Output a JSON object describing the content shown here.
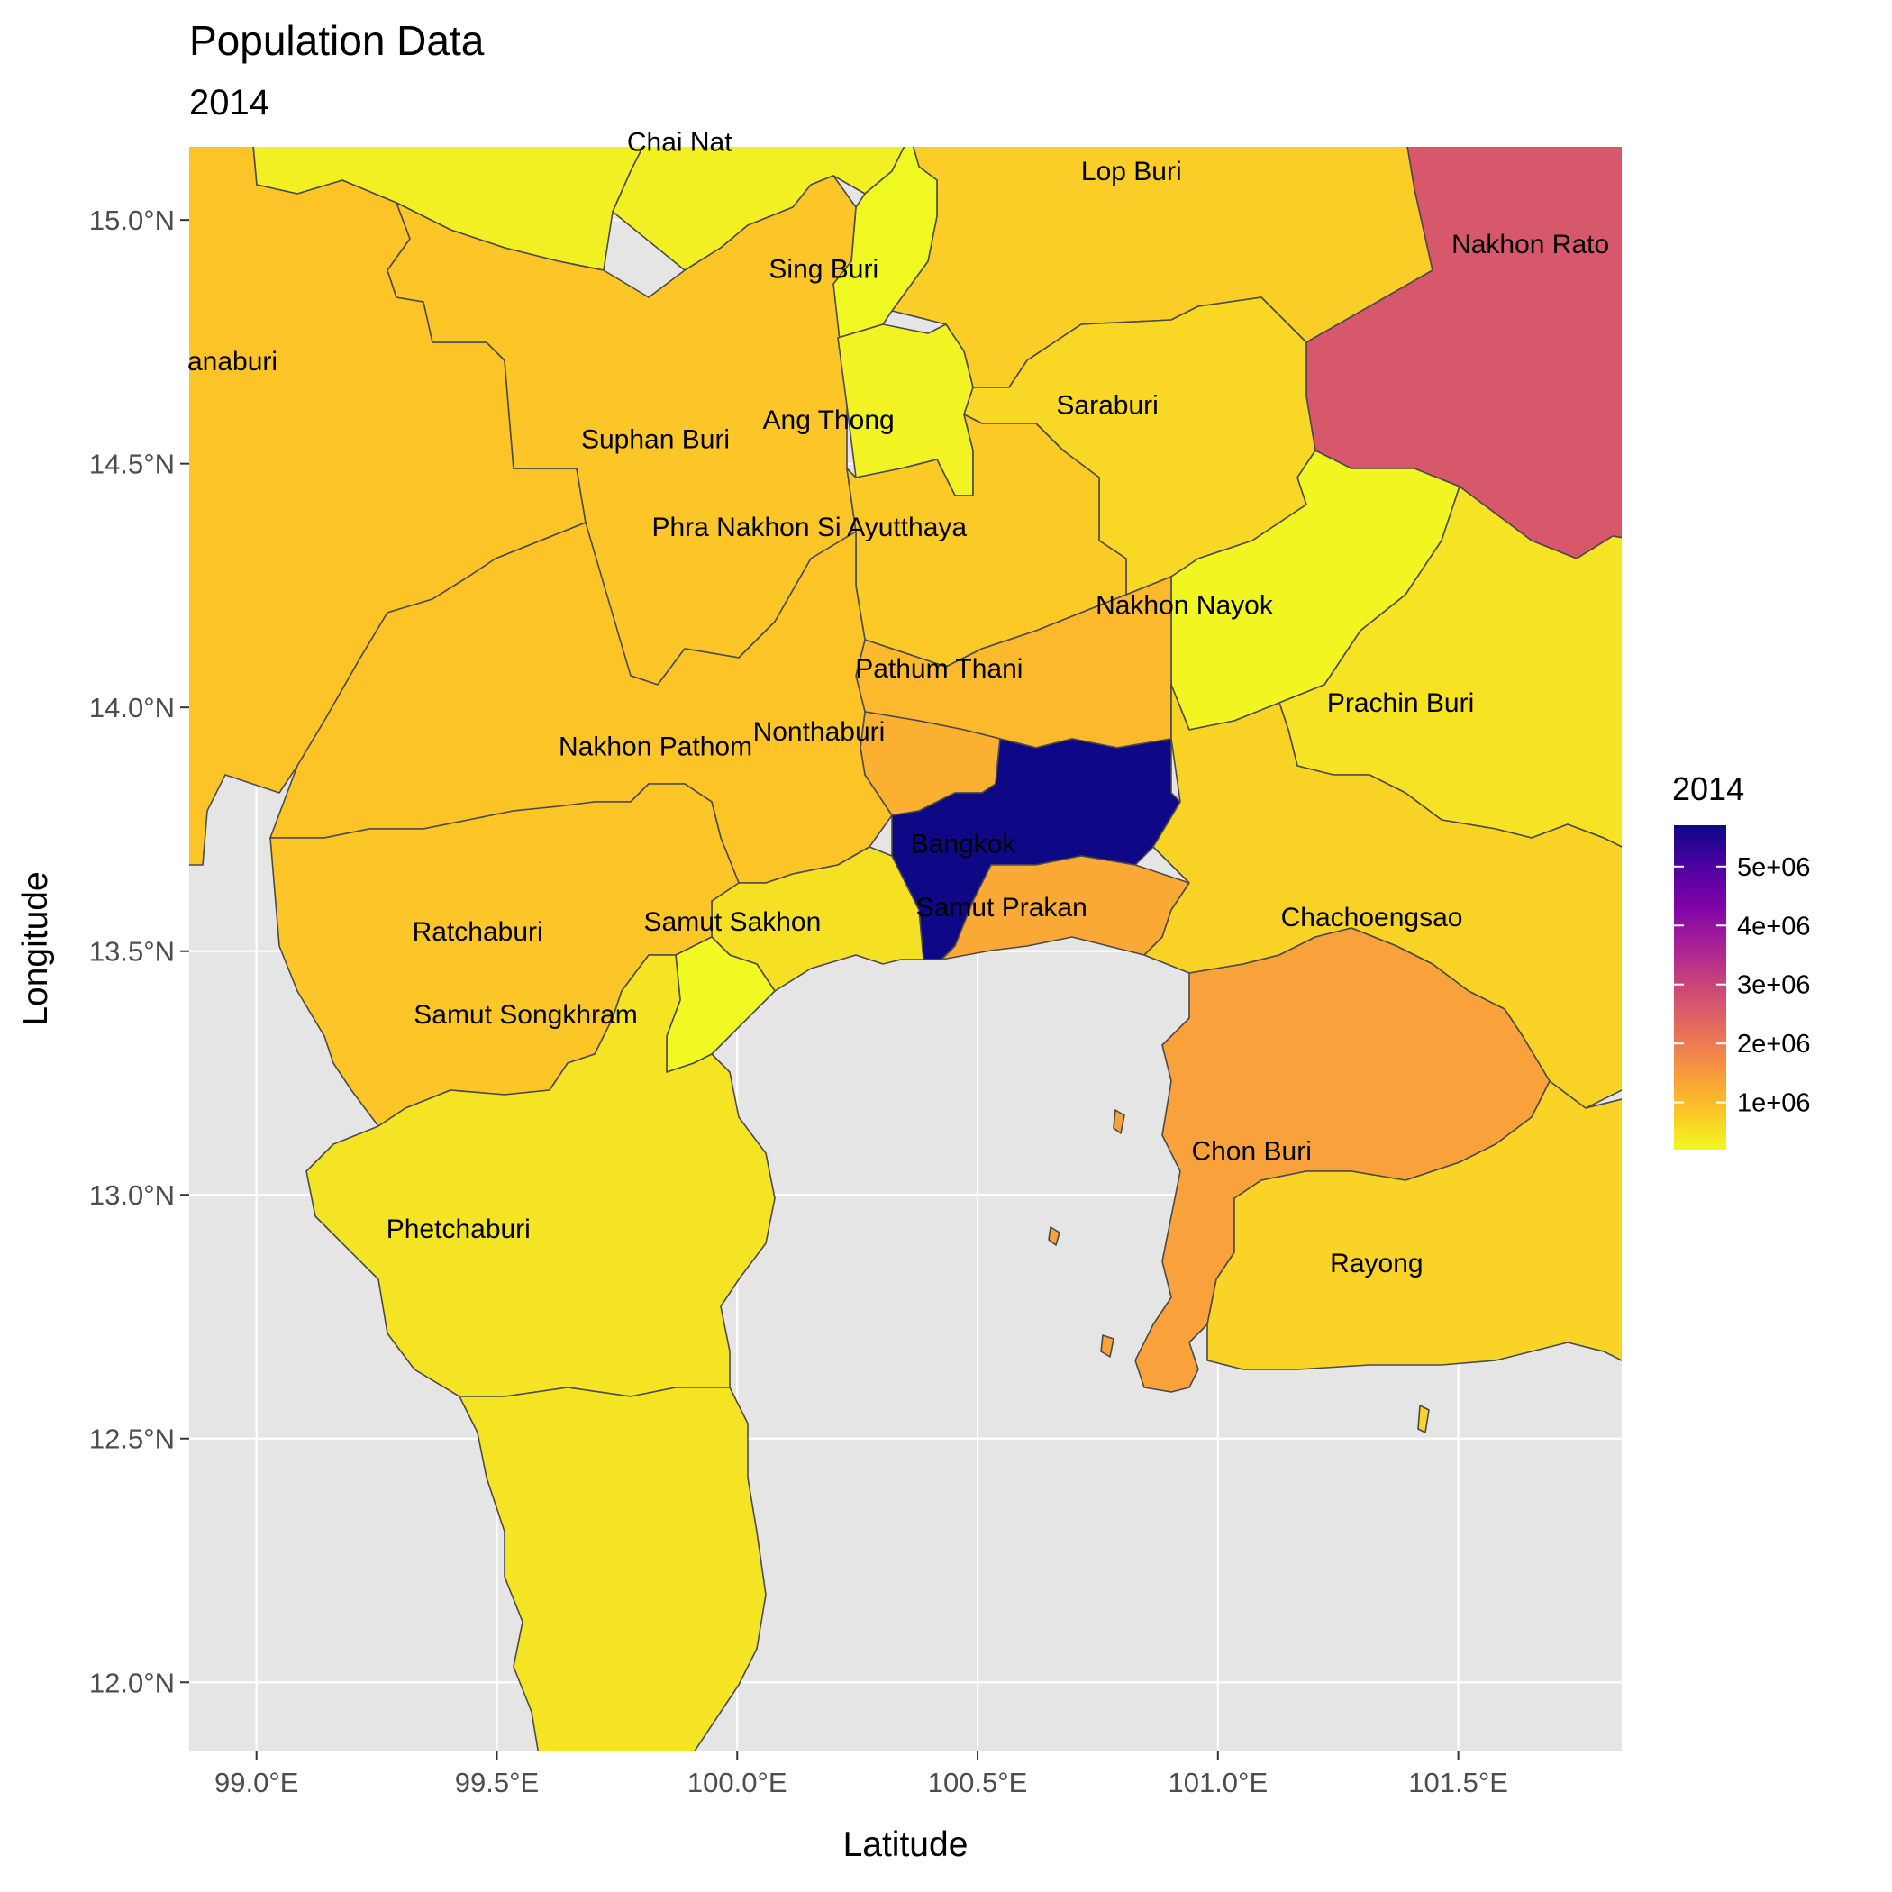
{
  "title": "Population Data",
  "subtitle": "2014",
  "chart_data": {
    "type": "choropleth",
    "title": "Population Data",
    "subtitle": "2014",
    "xlabel": "Latitude",
    "ylabel": "Longitude",
    "xlim": [
      98.86,
      101.84
    ],
    "ylim": [
      11.86,
      15.15
    ],
    "x_ticks": [
      99.0,
      99.5,
      100.0,
      100.5,
      101.0,
      101.5
    ],
    "x_tick_labels": [
      "99.0°E",
      "99.5°E",
      "100.0°E",
      "100.5°E",
      "101.0°E",
      "101.5°E"
    ],
    "y_ticks": [
      12.0,
      12.5,
      13.0,
      13.5,
      14.0,
      14.5,
      15.0
    ],
    "y_tick_labels": [
      "12.0°N",
      "12.5°N",
      "13.0°N",
      "13.5°N",
      "14.0°N",
      "14.5°N",
      "15.0°N"
    ],
    "grid": true,
    "legend": {
      "title": "2014",
      "placement": "right",
      "palette": "plasma",
      "range": [
        200000,
        5700000
      ],
      "breaks": [
        1000000,
        2000000,
        3000000,
        4000000,
        5000000
      ],
      "break_labels": [
        "1e+06",
        "2e+06",
        "3e+06",
        "4e+06",
        "5e+06"
      ]
    },
    "provinces": [
      {
        "name": "Chai Nat",
        "value": 330000,
        "label_lon": 99.88,
        "label_lat": 15.16
      },
      {
        "name": "Lop Buri",
        "value": 760000,
        "label_lon": 100.82,
        "label_lat": 15.1
      },
      {
        "name": "Nakhon Ratchasima",
        "label": "Nakhon Rato",
        "value": 2620000,
        "label_lon": 101.65,
        "label_lat": 14.95
      },
      {
        "name": "Sing Buri",
        "value": 212000,
        "label_lon": 100.18,
        "label_lat": 14.9
      },
      {
        "name": "Kanchanaburi",
        "label": "anaburi",
        "value": 880000,
        "label_lon": 98.95,
        "label_lat": 14.71
      },
      {
        "name": "Saraburi",
        "value": 630000,
        "label_lon": 100.77,
        "label_lat": 14.62
      },
      {
        "name": "Ang Thong",
        "value": 282000,
        "label_lon": 100.19,
        "label_lat": 14.59
      },
      {
        "name": "Suphan Buri",
        "value": 850000,
        "label_lon": 99.83,
        "label_lat": 14.55
      },
      {
        "name": "Phra Nakhon Si Ayutthaya",
        "value": 800000,
        "label_lon": 100.15,
        "label_lat": 14.37
      },
      {
        "name": "Nakhon Nayok",
        "value": 257000,
        "label_lon": 100.93,
        "label_lat": 14.21
      },
      {
        "name": "Pathum Thani",
        "value": 1030000,
        "label_lon": 100.42,
        "label_lat": 14.08
      },
      {
        "name": "Prachin Buri",
        "value": 480000,
        "label_lon": 101.38,
        "label_lat": 14.01
      },
      {
        "name": "Nonthaburi",
        "value": 1170000,
        "label_lon": 100.17,
        "label_lat": 13.95
      },
      {
        "name": "Nakhon Pathom",
        "value": 880000,
        "label_lon": 99.83,
        "label_lat": 13.92
      },
      {
        "name": "Bangkok",
        "value": 5690000,
        "label_lon": 100.47,
        "label_lat": 13.72
      },
      {
        "name": "Samut Prakan",
        "value": 1270000,
        "label_lon": 100.55,
        "label_lat": 13.59
      },
      {
        "name": "Samut Sakhon",
        "value": 520000,
        "label_lon": 99.99,
        "label_lat": 13.56
      },
      {
        "name": "Chachoengsao",
        "value": 700000,
        "label_lon": 101.32,
        "label_lat": 13.57
      },
      {
        "name": "Ratchaburi",
        "value": 860000,
        "label_lon": 99.46,
        "label_lat": 13.54
      },
      {
        "name": "Samut Songkhram",
        "value": 194000,
        "label_lon": 99.56,
        "label_lat": 13.37
      },
      {
        "name": "Chon Buri",
        "value": 1390000,
        "label_lon": 101.07,
        "label_lat": 13.09
      },
      {
        "name": "Phetchaburi",
        "value": 470000,
        "label_lon": 99.42,
        "label_lat": 12.93
      },
      {
        "name": "Rayong",
        "value": 680000,
        "label_lon": 101.33,
        "label_lat": 12.86
      }
    ]
  }
}
